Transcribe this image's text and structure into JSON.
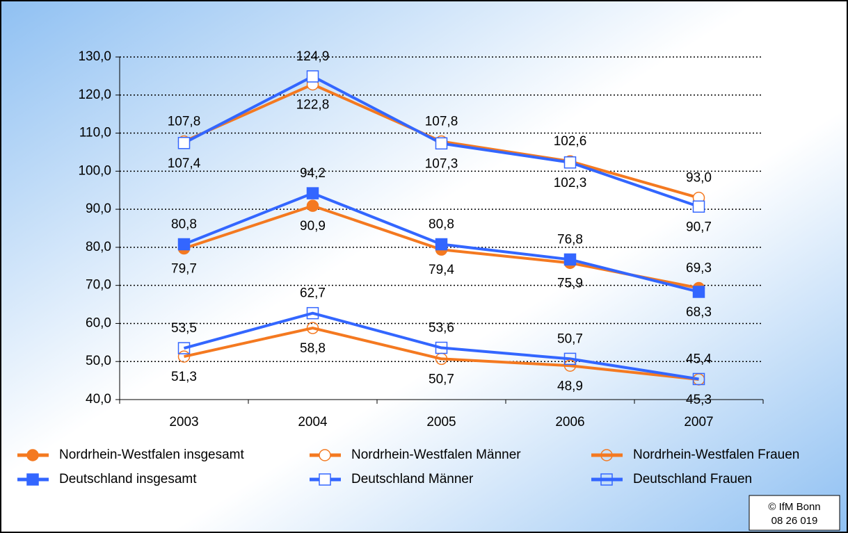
{
  "chart_data": {
    "type": "line",
    "categories": [
      "2003",
      "2004",
      "2005",
      "2006",
      "2007"
    ],
    "ylim": [
      40,
      130
    ],
    "yticks": [
      {
        "value": 40,
        "label": "40,0"
      },
      {
        "value": 50,
        "label": "50,0"
      },
      {
        "value": 60,
        "label": "60,0"
      },
      {
        "value": 70,
        "label": "70,0"
      },
      {
        "value": 80,
        "label": "80,0"
      },
      {
        "value": 90,
        "label": "90,0"
      },
      {
        "value": 100,
        "label": "100,0"
      },
      {
        "value": 110,
        "label": "110,0"
      },
      {
        "value": 120,
        "label": "120,0"
      },
      {
        "value": 130,
        "label": "130,0"
      }
    ],
    "grid": true,
    "legend": "bottom",
    "series": [
      {
        "name": "Nordrhein-Westfalen insgesamt",
        "color": "#f47920",
        "marker": "circle",
        "fill": "filled",
        "values": [
          79.7,
          90.9,
          79.4,
          75.9,
          69.3
        ],
        "value_labels": [
          "79,7",
          "90,9",
          "79,4",
          "75,9",
          "69,3"
        ]
      },
      {
        "name": "Nordrhein-Westfalen Männer",
        "color": "#f47920",
        "marker": "circle",
        "fill": "white",
        "values": [
          107.8,
          122.8,
          107.8,
          102.6,
          93.0
        ],
        "value_labels": [
          "107,8",
          "122,8",
          "107,8",
          "102,6",
          "93,0"
        ]
      },
      {
        "name": "Nordrhein-Westfalen Frauen",
        "color": "#f47920",
        "marker": "circle",
        "fill": "none",
        "values": [
          51.3,
          58.8,
          50.7,
          48.9,
          45.3
        ],
        "value_labels": [
          "51,3",
          "58,8",
          "50,7",
          "48,9",
          "45,3"
        ]
      },
      {
        "name": "Deutschland insgesamt",
        "color": "#3366ff",
        "marker": "square",
        "fill": "filled",
        "values": [
          80.8,
          94.2,
          80.8,
          76.8,
          68.3
        ],
        "value_labels": [
          "80,8",
          "94,2",
          "80,8",
          "76,8",
          "68,3"
        ]
      },
      {
        "name": "Deutschland Männer",
        "color": "#3366ff",
        "marker": "square",
        "fill": "white",
        "values": [
          107.4,
          124.9,
          107.3,
          102.3,
          90.7
        ],
        "value_labels": [
          "107,4",
          "124,9",
          "107,3",
          "102,3",
          "90,7"
        ]
      },
      {
        "name": "Deutschland Frauen",
        "color": "#3366ff",
        "marker": "square",
        "fill": "none",
        "values": [
          53.5,
          62.7,
          53.6,
          50.7,
          45.4
        ],
        "value_labels": [
          "53,5",
          "62,7",
          "53,6",
          "50,7",
          "45,4"
        ]
      }
    ],
    "credit": [
      "© IfM Bonn",
      "08 26 019"
    ]
  }
}
